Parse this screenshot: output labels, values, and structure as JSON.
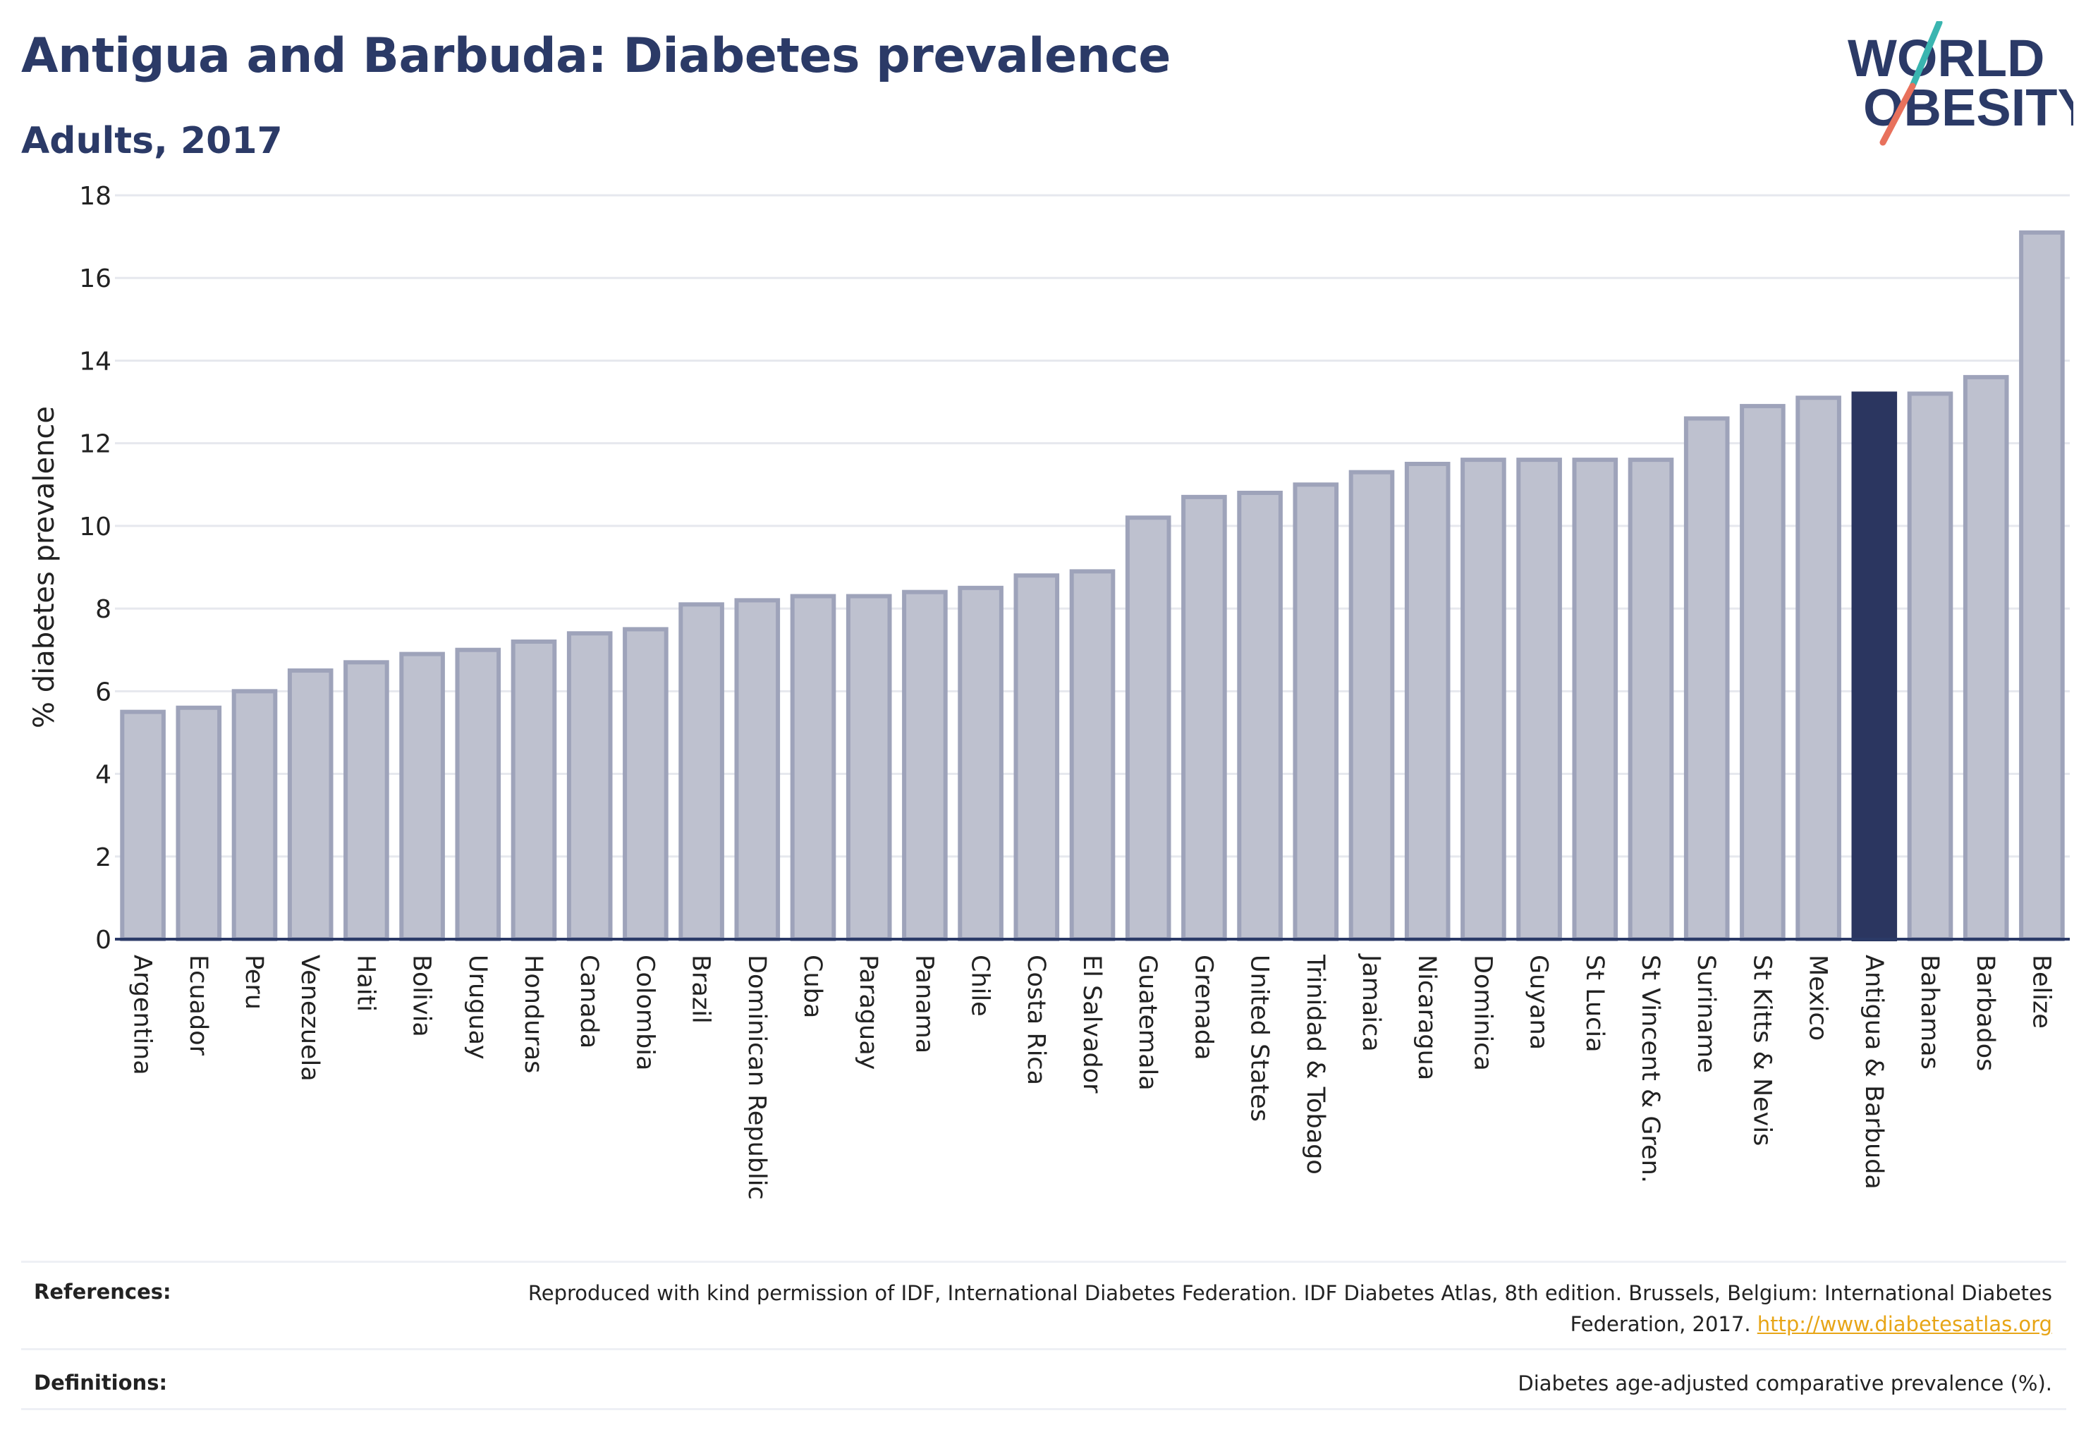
{
  "header": {
    "title": "Antigua and Barbuda: Diabetes prevalence",
    "subtitle": "Adults, 2017"
  },
  "logo": {
    "line1": "WORLD",
    "line2": "OBESITY",
    "colors": {
      "text": "#2b3a67",
      "slash_top": "#3ab5b0",
      "slash_bottom": "#e8715c"
    }
  },
  "chart_data": {
    "type": "bar",
    "ylabel": "% diabetes prevalence",
    "xlabel": "",
    "ylim": [
      0,
      18
    ],
    "yticks": [
      0,
      2,
      4,
      6,
      8,
      10,
      12,
      14,
      16,
      18
    ],
    "grid": true,
    "legend": "none",
    "highlight": "Antigua & Barbuda",
    "colors": {
      "bar": "#bec1cf",
      "bar_edge": "#9ea3ba",
      "highlight": "#2b3660",
      "grid": "#e6e8ee",
      "axis": "#2b3a67"
    },
    "categories": [
      "Argentina",
      "Ecuador",
      "Peru",
      "Venezuela",
      "Haiti",
      "Bolivia",
      "Uruguay",
      "Honduras",
      "Canada",
      "Colombia",
      "Brazil",
      "Dominican Republic",
      "Cuba",
      "Paraguay",
      "Panama",
      "Chile",
      "Costa Rica",
      "El Salvador",
      "Guatemala",
      "Grenada",
      "United States",
      "Trinidad & Tobago",
      "Jamaica",
      "Nicaragua",
      "Dominica",
      "Guyana",
      "St Lucia",
      "St Vincent & Gren.",
      "Suriname",
      "St Kitts & Nevis",
      "Mexico",
      "Antigua & Barbuda",
      "Bahamas",
      "Barbados",
      "Belize"
    ],
    "values": [
      5.5,
      5.6,
      6.0,
      6.5,
      6.7,
      6.9,
      7.0,
      7.2,
      7.4,
      7.5,
      8.1,
      8.2,
      8.3,
      8.3,
      8.4,
      8.5,
      8.8,
      8.9,
      10.2,
      10.7,
      10.8,
      11.0,
      11.3,
      11.5,
      11.6,
      11.6,
      11.6,
      11.6,
      12.6,
      12.9,
      13.1,
      13.2,
      13.2,
      13.6,
      17.1
    ]
  },
  "footer": {
    "references_label": "References:",
    "references_text": "Reproduced with kind permission of IDF, International Diabetes Federation. IDF Diabetes Atlas, 8th edition. Brussels, Belgium: International Diabetes Federation, 2017.",
    "references_link": "http://www.diabetesatlas.org",
    "definitions_label": "Definitions:",
    "definitions_text": "Diabetes age-adjusted comparative prevalence (%)."
  }
}
